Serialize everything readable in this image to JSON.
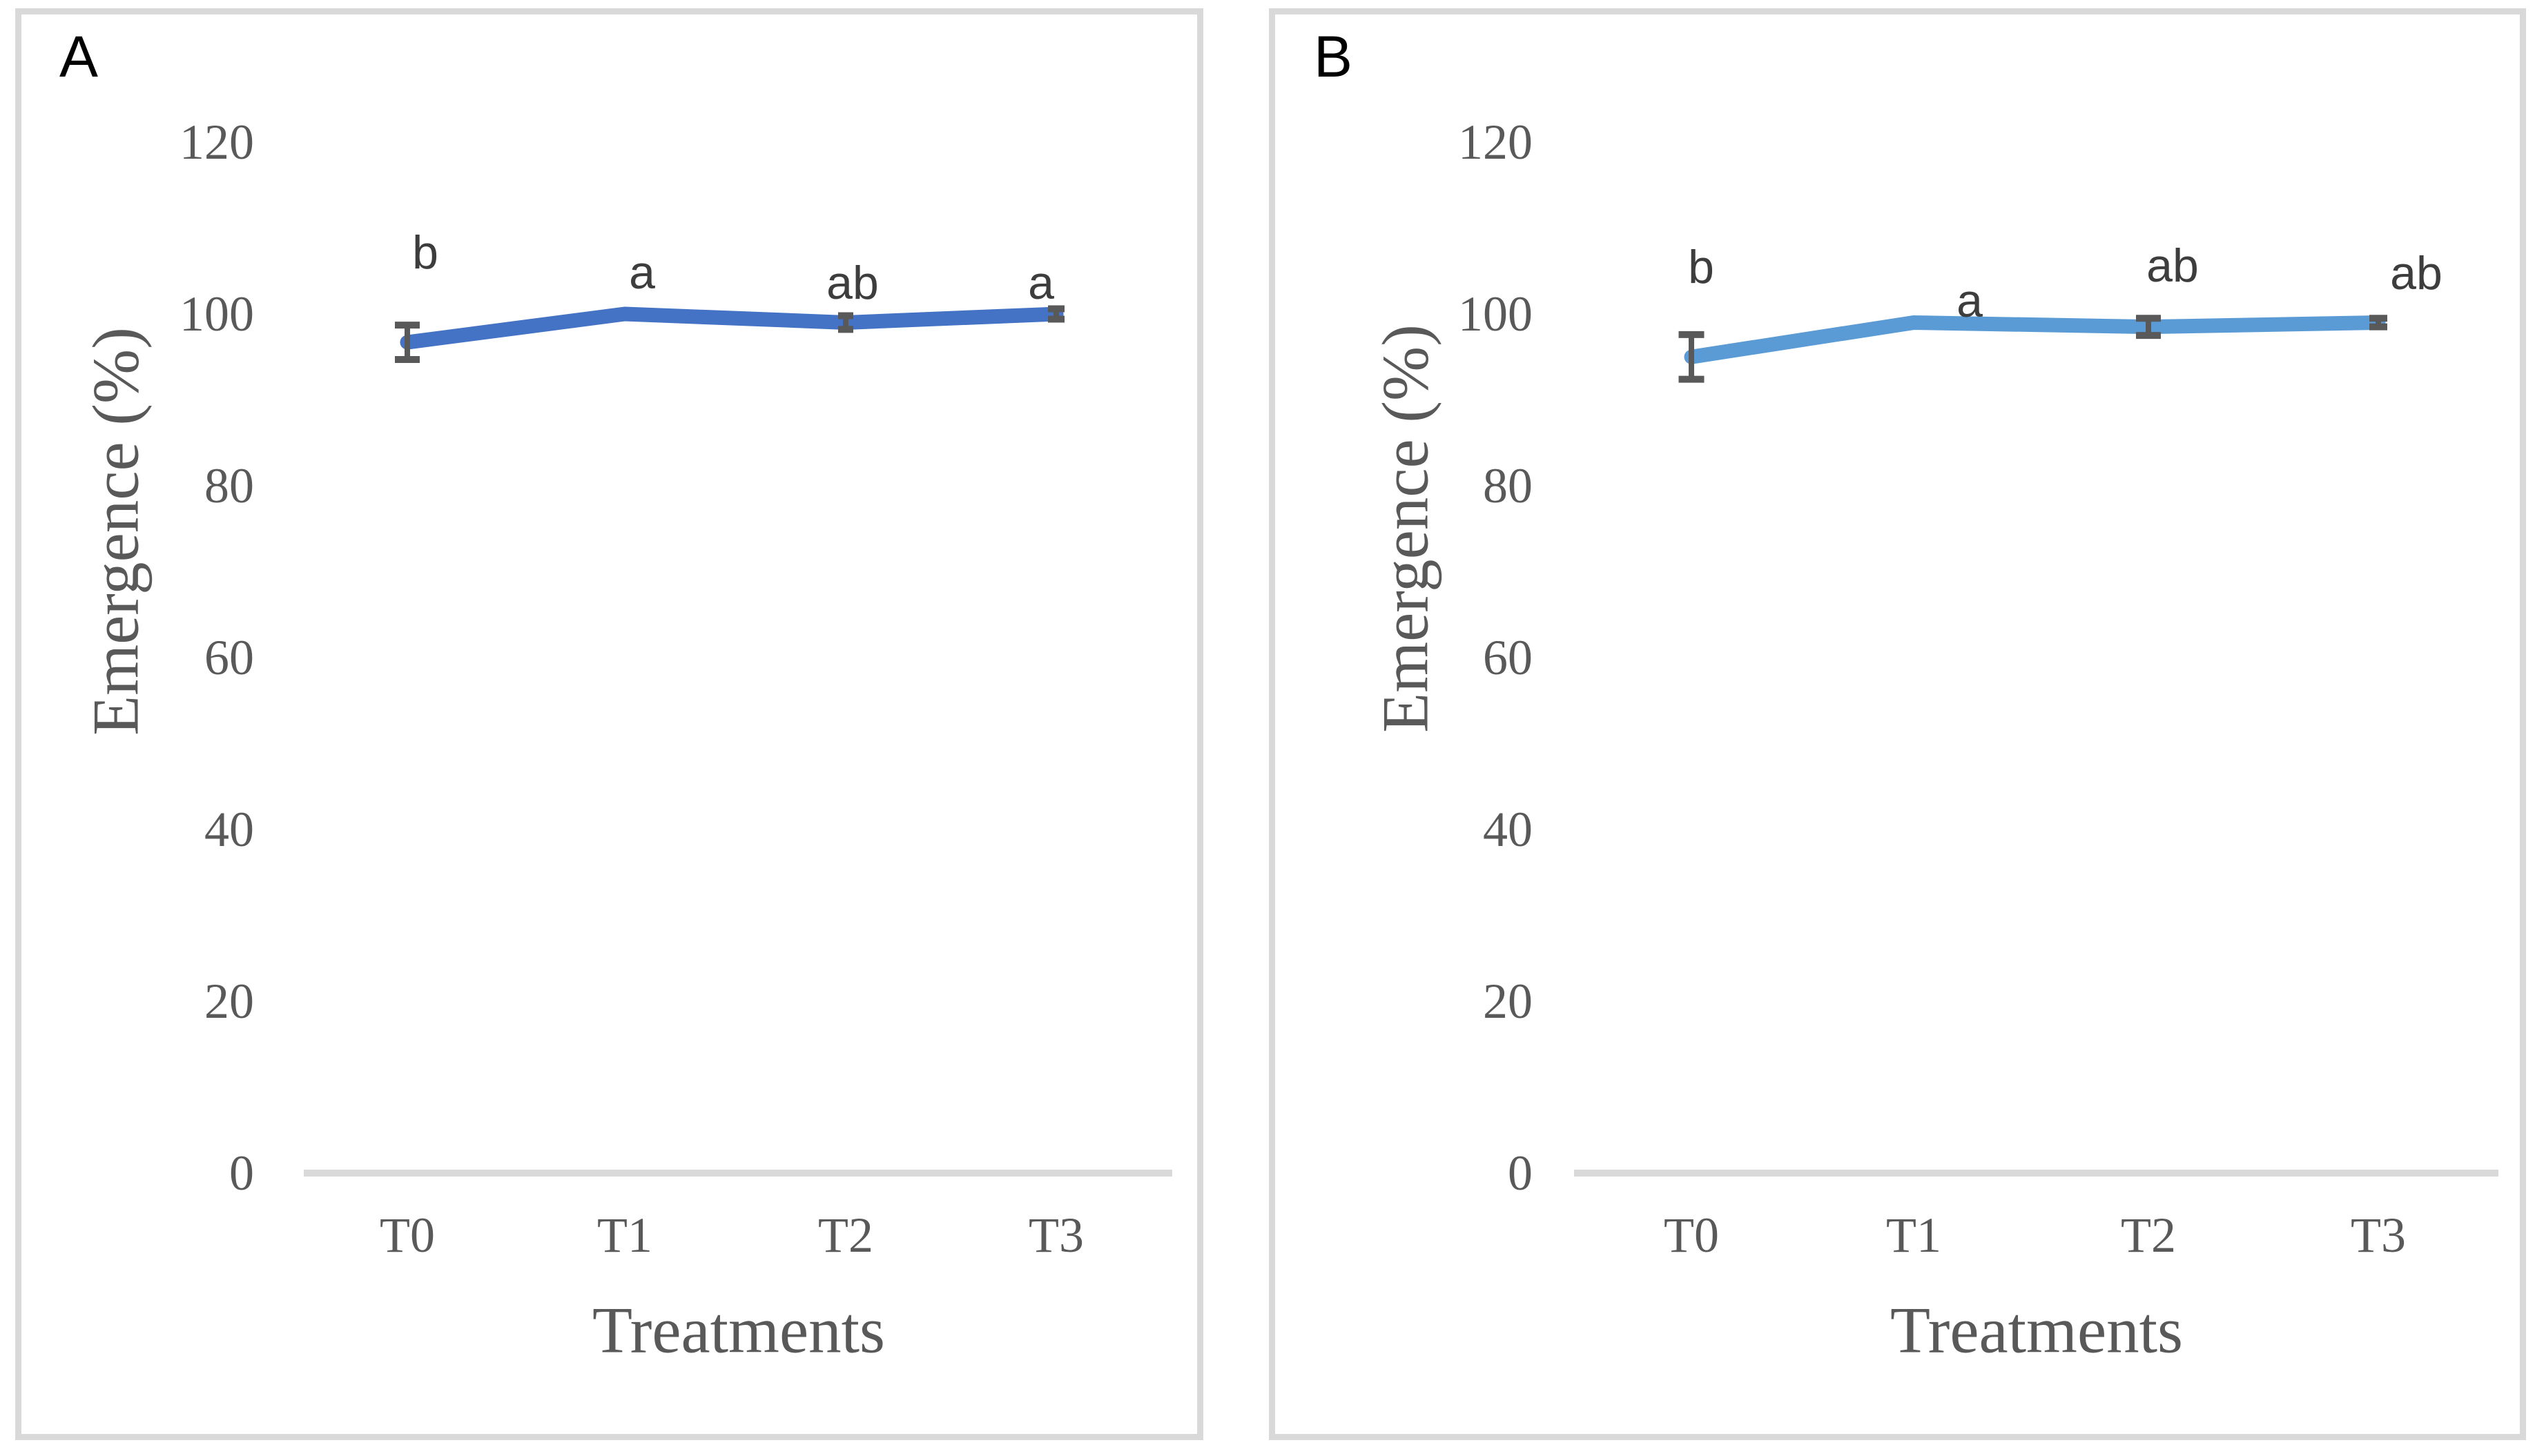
{
  "figure": {
    "panels": [
      {
        "panel_label": "A",
        "y_axis_title": "Emergence (%)",
        "x_axis_title": "Treatments",
        "y_tick_labels": [
          "120",
          "100",
          "80",
          "60",
          "40",
          "20",
          "0"
        ],
        "x_tick_labels": [
          "T0",
          "T1",
          "T2",
          "T3"
        ]
      },
      {
        "panel_label": "B",
        "y_axis_title": "Emergence (%)",
        "x_axis_title": "Treatments",
        "y_tick_labels": [
          "120",
          "100",
          "80",
          "60",
          "40",
          "20",
          "0"
        ],
        "x_tick_labels": [
          "T0",
          "T1",
          "T2",
          "T3"
        ]
      }
    ]
  },
  "chart_data": [
    {
      "type": "line",
      "panel": "A",
      "title": "",
      "categories": [
        "T0",
        "T1",
        "T2",
        "T3"
      ],
      "series": [
        {
          "name": "Emergence (%)",
          "values": [
            96.7,
            100,
            99,
            100
          ],
          "error_bars": [
            2,
            null,
            0.8,
            0.6
          ],
          "sig_letters": [
            "b",
            "a",
            "ab",
            "a"
          ],
          "color": "#4472C4"
        }
      ],
      "xlabel": "Treatments",
      "ylabel": "Emergence (%)",
      "ylim": [
        0,
        120
      ],
      "yticks": [
        0,
        20,
        40,
        60,
        80,
        100,
        120
      ],
      "grid": false,
      "legend": false
    },
    {
      "type": "line",
      "panel": "B",
      "title": "",
      "categories": [
        "T0",
        "T1",
        "T2",
        "T3"
      ],
      "series": [
        {
          "name": "Emergence (%)",
          "values": [
            95,
            99,
            98.5,
            99
          ],
          "error_bars": [
            2.6,
            null,
            1,
            0.5
          ],
          "sig_letters": [
            "b",
            "a",
            "ab",
            "ab"
          ],
          "color": "#5B9BD5"
        }
      ],
      "xlabel": "Treatments",
      "ylabel": "Emergence (%)",
      "ylim": [
        0,
        120
      ],
      "yticks": [
        0,
        20,
        40,
        60,
        80,
        100,
        120
      ],
      "grid": false,
      "legend": false
    }
  ],
  "colors": {
    "panel_border": "#d9d9d9",
    "axis_line": "#d9d9d9",
    "tick_text": "#595959",
    "axis_title_text": "#595959",
    "sig_letter_text": "#3d3d3d",
    "panel_label_text": "#000000",
    "error_bar": "#595959",
    "line_panel_a": "#4472C4",
    "line_panel_b": "#5B9BD5"
  }
}
